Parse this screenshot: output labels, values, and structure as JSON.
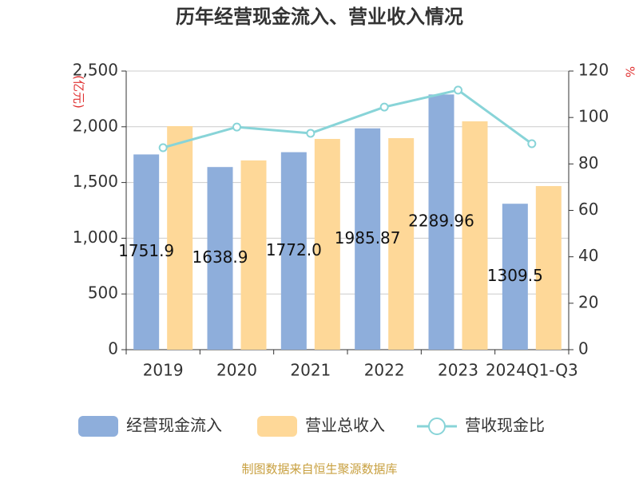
{
  "chart_data": {
    "type": "bar_line",
    "title": "历年经营现金流入、营业收入情况",
    "y_unit": "(亿元)",
    "y2_unit": "%",
    "source": "制图数据来自恒生聚源数据库",
    "categories": [
      "2019",
      "2020",
      "2021",
      "2022",
      "2023",
      "2024Q1-Q3"
    ],
    "series": [
      {
        "name": "经营现金流入",
        "type": "bar",
        "color": "#8eaedb",
        "values": [
          1751.9,
          1638.9,
          1772.0,
          1985.87,
          2289.96,
          1309.5
        ],
        "value_labels": [
          "1751.9",
          "1638.9",
          "1772.0",
          "1985.87",
          "2289.96",
          "1309.5"
        ]
      },
      {
        "name": "营业总收入",
        "type": "bar",
        "color": "#fed898",
        "values": [
          2006,
          1698,
          1891,
          1898,
          2049,
          1468
        ]
      },
      {
        "name": "营收现金比",
        "type": "line",
        "axis": "y2",
        "color": "#88d4d8",
        "values": [
          87.0,
          95.9,
          93.2,
          104.5,
          111.8,
          88.7
        ]
      }
    ],
    "ylim": [
      0,
      2500
    ],
    "yticks": [
      0,
      500,
      {
        "value": 1000,
        "label": "1,000"
      },
      {
        "value": 1500,
        "label": "1,500"
      },
      {
        "value": 2000,
        "label": "2,000"
      },
      {
        "value": 2500,
        "label": "2,500"
      }
    ],
    "y2lim": [
      0,
      120
    ],
    "y2ticks": [
      0,
      20,
      40,
      60,
      80,
      100,
      120
    ],
    "grid": true
  }
}
